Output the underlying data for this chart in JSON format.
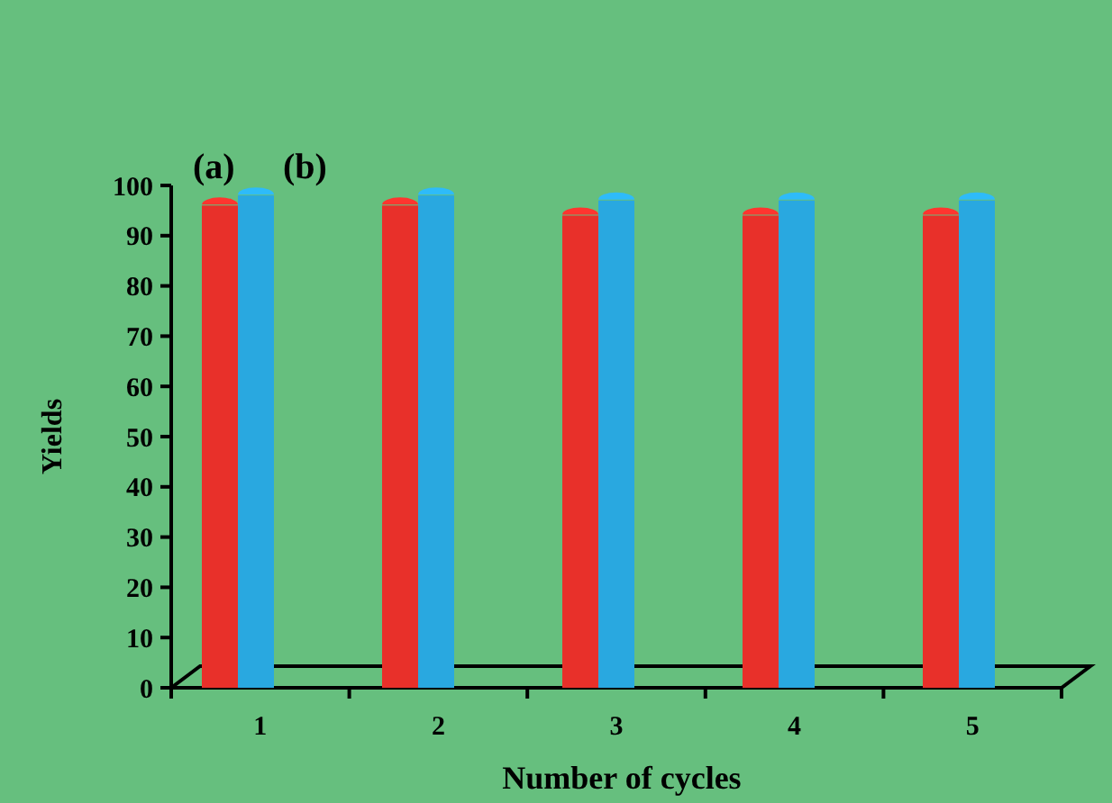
{
  "chart_data": {
    "type": "bar",
    "xlabel": "Number of cycles",
    "ylabel": "Yields",
    "categories": [
      "1",
      "2",
      "3",
      "4",
      "5"
    ],
    "series": [
      {
        "name": "(a)",
        "color": "#e8302a",
        "values": [
          96,
          96,
          94,
          94,
          94
        ]
      },
      {
        "name": "(b)",
        "color": "#29a8e0",
        "values": [
          98,
          98,
          97,
          97,
          97
        ]
      }
    ],
    "ylim": [
      0,
      100
    ],
    "yticks": [
      0,
      10,
      20,
      30,
      40,
      50,
      60,
      70,
      80,
      90,
      100
    ],
    "grid": false
  }
}
